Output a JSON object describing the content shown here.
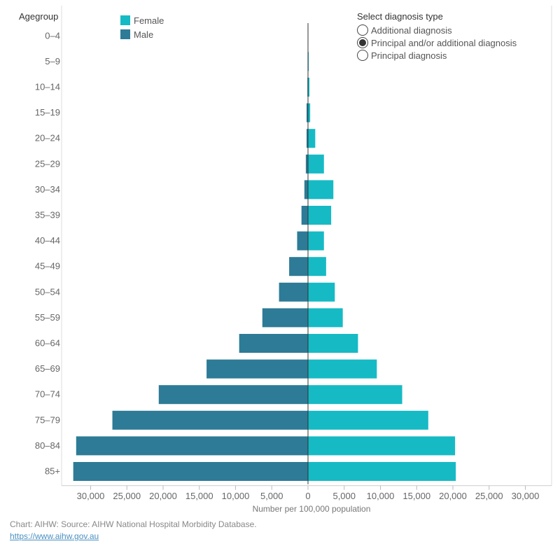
{
  "legend": {
    "female_label": "Female",
    "male_label": "Male"
  },
  "colors": {
    "female": "#16bac5",
    "male": "#2d7b96"
  },
  "diagnosis": {
    "title": "Select diagnosis type",
    "options": [
      {
        "label": "Additional diagnosis",
        "selected": false
      },
      {
        "label": "Principal and/or additional diagnosis",
        "selected": true
      },
      {
        "label": "Principal diagnosis",
        "selected": false
      }
    ]
  },
  "footer": {
    "source": "Chart: AIHW: Source: AIHW National Hospital Morbidity Database.",
    "link": "https://www.aihw.gov.au"
  },
  "chart_data": {
    "type": "bar",
    "orientation": "horizontal-butterfly",
    "ytitle": "Agegroup",
    "xlabel": "Number per 100,000 population",
    "categories": [
      "0–4",
      "5–9",
      "10–14",
      "15–19",
      "20–24",
      "25–29",
      "30–34",
      "35–39",
      "40–44",
      "45–49",
      "50–54",
      "55–59",
      "60–64",
      "65–69",
      "70–74",
      "75–79",
      "80–84",
      "85+"
    ],
    "series": [
      {
        "name": "Female",
        "values": [
          50,
          100,
          200,
          300,
          1000,
          2200,
          3500,
          3200,
          2200,
          2500,
          3700,
          4800,
          6900,
          9500,
          13000,
          16600,
          20300,
          20400
        ]
      },
      {
        "name": "Male",
        "values": [
          0,
          50,
          80,
          200,
          200,
          300,
          500,
          900,
          1500,
          2600,
          4000,
          6300,
          9500,
          14000,
          20600,
          27000,
          32000,
          32400
        ]
      }
    ],
    "xticks": [
      "30,000",
      "25,000",
      "20,000",
      "15,000",
      "10,000",
      "5,000",
      "0",
      "5,000",
      "10,000",
      "15,000",
      "20,000",
      "25,000",
      "30,000"
    ],
    "xlim": [
      -30000,
      30000
    ]
  }
}
